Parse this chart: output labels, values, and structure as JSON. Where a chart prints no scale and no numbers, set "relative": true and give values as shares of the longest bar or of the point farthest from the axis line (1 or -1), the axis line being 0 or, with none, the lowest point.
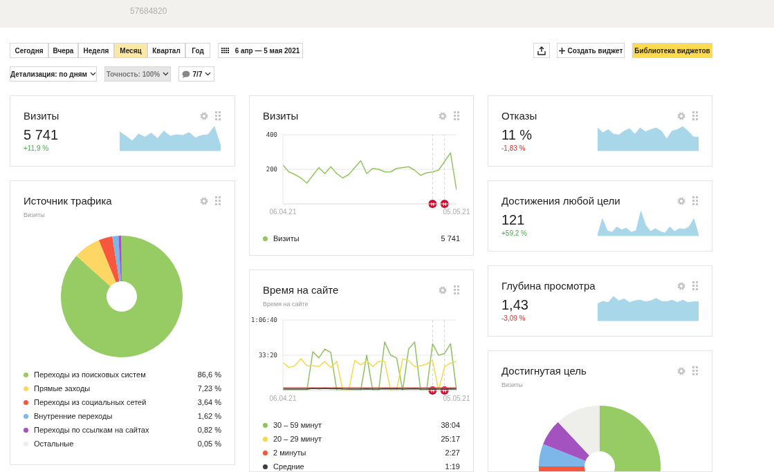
{
  "chart_data": [
    {
      "type": "other",
      "annotations": [
        "57684820",
        "Сегодня",
        "Вчера",
        "Неделя",
        "Месяц",
        "Квартал",
        "Год",
        "6 апр — 5 мая 2021",
        "Создать виджет",
        "Библиотека виджетов",
        "Детализация: по дням",
        "Точность: 100%",
        "7/7"
      ]
    },
    {
      "type": "area",
      "relative": true,
      "title": "Визиты",
      "annotations": [
        "5 741",
        "+11,9 %"
      ],
      "color": "#a9d7ea",
      "values": [
        0.78,
        0.6,
        0.4,
        0.69,
        0.56,
        0.73,
        0.5,
        0.81,
        0.6,
        0.66,
        0.63,
        0.75,
        0.53,
        0.63,
        0.66,
        1,
        0.19
      ]
    },
    {
      "type": "line",
      "title": "Визиты",
      "annotations": [
        "5 741"
      ],
      "legend": "bottom",
      "grid": "y",
      "x": [
        "2021-04-06",
        "2021-04-07",
        "2021-04-08",
        "2021-04-09",
        "2021-04-10",
        "2021-04-11",
        "2021-04-12",
        "2021-04-13",
        "2021-04-14",
        "2021-04-15",
        "2021-04-16",
        "2021-04-17",
        "2021-04-18",
        "2021-04-19",
        "2021-04-20",
        "2021-04-21",
        "2021-04-22",
        "2021-04-23",
        "2021-04-24",
        "2021-04-25",
        "2021-04-26",
        "2021-04-27",
        "2021-04-28",
        "2021-04-29",
        "2021-04-30",
        "2021-05-01",
        "2021-05-02",
        "2021-05-03",
        "2021-05-04",
        "2021-05-05"
      ],
      "xlim": [
        "2021-04-06",
        "2021-05-05"
      ],
      "xticks": [
        {
          "value": "2021-04-06",
          "label": "06.04.21"
        },
        {
          "value": "2021-05-05",
          "label": "05.05.21"
        }
      ],
      "ylim": [
        0,
        400
      ],
      "yticks": [
        {
          "value": 0,
          "label": null
        },
        200,
        400
      ],
      "ref_lines": [
        {
          "axis": "x",
          "value": "2021-05-01",
          "label": "Н",
          "line_style": "dashed"
        },
        {
          "axis": "x",
          "value": "2021-05-03",
          "label": "Н",
          "line_style": "dashed"
        }
      ],
      "series": [
        {
          "name": "Визиты",
          "color": "#93c55f",
          "values": [
            225,
            185,
            170,
            150,
            120,
            165,
            210,
            175,
            215,
            175,
            150,
            170,
            210,
            250,
            175,
            205,
            200,
            185,
            185,
            205,
            210,
            215,
            195,
            165,
            180,
            185,
            195,
            245,
            295,
            80
          ]
        }
      ]
    },
    {
      "type": "area",
      "relative": true,
      "title": "Отказы",
      "annotations": [
        "11 %",
        "-1,83 %"
      ],
      "color": "#a9d7ea",
      "values": [
        0.94,
        0.74,
        0.87,
        0.68,
        0.65,
        0.81,
        0.91,
        0.68,
        0.94,
        0.78,
        0.87,
        0.94,
        0.81,
        0.48,
        0.81,
        0.87,
        1,
        0.81,
        0.57,
        0.55
      ]
    },
    {
      "type": "donut",
      "title": "Источник трафика",
      "subtitle": "Визиты",
      "legend": "bottom",
      "categories": [
        "Переходы из поисковых систем",
        "Прямые заходы",
        "Переходы из социальных сетей",
        "Внутренние переходы",
        "Переходы по ссылкам на сайтах",
        "Остальные"
      ],
      "values": [
        86.6,
        7.23,
        3.64,
        1.62,
        0.82,
        0.05
      ],
      "value_labels": [
        "86,6 %",
        "7,23 %",
        "3,64 %",
        "1,62 %",
        "0,82 %",
        "0,05 %"
      ],
      "colors": [
        "#97cb64",
        "#fdd663",
        "#f6573d",
        "#7db7ea",
        "#a452c0",
        "#eeeeea"
      ]
    },
    {
      "type": "line",
      "title": "Время на сайте",
      "subtitle": "Время на сайте",
      "annotations": [
        "38:04",
        "25:17",
        "2:27",
        "1:19"
      ],
      "legend": "bottom",
      "grid": "y",
      "x": [
        "2021-04-06",
        "2021-04-07",
        "2021-04-08",
        "2021-04-09",
        "2021-04-10",
        "2021-04-11",
        "2021-04-12",
        "2021-04-13",
        "2021-04-14",
        "2021-04-15",
        "2021-04-16",
        "2021-04-17",
        "2021-04-18",
        "2021-04-19",
        "2021-04-20",
        "2021-04-21",
        "2021-04-22",
        "2021-04-23",
        "2021-04-24",
        "2021-04-25",
        "2021-04-26",
        "2021-04-27",
        "2021-04-28",
        "2021-04-29",
        "2021-04-30",
        "2021-05-01",
        "2021-05-02",
        "2021-05-03",
        "2021-05-04",
        "2021-05-05"
      ],
      "xlim": [
        "2021-04-06",
        "2021-05-05"
      ],
      "xticks": [
        {
          "value": "2021-04-06",
          "label": "06.04.21"
        },
        {
          "value": "2021-05-05",
          "label": "05.05.21"
        }
      ],
      "ylim": [
        0,
        4000
      ],
      "yticks": [
        {
          "value": 0,
          "label": null
        },
        {
          "value": 2000,
          "label": "33:20"
        },
        {
          "value": 4000,
          "label": "1:06:40"
        }
      ],
      "ref_lines": [
        {
          "axis": "x",
          "value": "2021-05-01",
          "label": "Н",
          "line_style": "dashed"
        },
        {
          "axis": "x",
          "value": "2021-05-03",
          "label": "Н",
          "line_style": "dashed"
        }
      ],
      "series": [
        {
          "name": "30 – 59 минут",
          "color": "#8fc062",
          "values": [
            0,
            0,
            0,
            0,
            0,
            2200,
            1850,
            2350,
            2150,
            0,
            0,
            0,
            0,
            0,
            2000,
            0,
            0,
            2750,
            2000,
            1850,
            0,
            2350,
            2750,
            0,
            0,
            2650,
            2000,
            2100,
            2650,
            0
          ]
        },
        {
          "name": "20 – 29 минут",
          "color": "#f5d84c",
          "values": [
            1600,
            1300,
            1400,
            1800,
            1400,
            1400,
            1350,
            1650,
            1300,
            1650,
            0,
            0,
            1700,
            1450,
            1700,
            1350,
            1650,
            1650,
            0,
            0,
            1800,
            1700,
            1350,
            1400,
            1500,
            1700,
            0,
            1350,
            1550,
            1650
          ]
        },
        {
          "name": "2 минуты",
          "color": "#f0553c",
          "values": [
            150,
            150,
            150,
            150,
            150,
            150,
            150,
            150,
            150,
            150,
            150,
            150,
            150,
            150,
            150,
            150,
            150,
            150,
            150,
            150,
            150,
            150,
            150,
            150,
            150,
            150,
            150,
            150,
            150,
            150
          ]
        },
        {
          "name": "Средние",
          "color": "#3d3d3d",
          "values": [
            80,
            80,
            80,
            80,
            80,
            120,
            100,
            120,
            100,
            110,
            90,
            80,
            80,
            80,
            90,
            80,
            80,
            100,
            90,
            100,
            80,
            90,
            100,
            80,
            80,
            90,
            80,
            80,
            90,
            80
          ]
        }
      ]
    },
    {
      "type": "area",
      "relative": true,
      "title": "Достижения любой цели",
      "annotations": [
        "121",
        "+59,2 %"
      ],
      "color": "#a9d7ea",
      "values": [
        0.03,
        0.69,
        0.21,
        0.14,
        0.36,
        0.24,
        0.31,
        0.14,
        0.21,
        1,
        0.43,
        0.17,
        0.29,
        0.17,
        0.11,
        0.36,
        0.17,
        0.29,
        0.26,
        0.36,
        0.69,
        0.03
      ]
    },
    {
      "type": "area",
      "relative": true,
      "title": "Глубина просмотра",
      "annotations": [
        "1,43",
        "-3,09 %"
      ],
      "color": "#a9d7ea",
      "values": [
        0.7,
        0.8,
        0.75,
        1,
        0.82,
        0.9,
        0.75,
        0.82,
        0.85,
        0.78,
        0.82,
        0.92,
        0.8,
        0.78,
        0.85,
        0.75,
        0.85,
        0.75,
        0.78,
        0.78
      ]
    },
    {
      "type": "donut",
      "title": "Достигнутая цель",
      "subtitle": "Визиты",
      "categories": [
        null,
        null,
        null,
        null,
        null
      ],
      "values": [
        67,
        8,
        6,
        7,
        12
      ],
      "colors": [
        "#97cb64",
        "#f6573d",
        "#7db7ea",
        "#a452c0",
        "#eeeeea"
      ]
    }
  ]
}
